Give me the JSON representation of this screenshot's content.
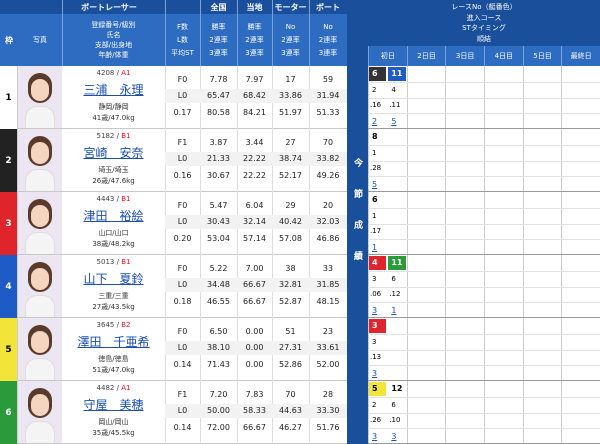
{
  "header": {
    "racer": "ボートレーサー",
    "national": "全国",
    "local": "当地",
    "motor": "モーター",
    "boat": "ボート",
    "waku": "枠",
    "photo": "写真",
    "racer_sub": [
      "登録番号/級別",
      "氏名",
      "支部/出身地",
      "年齢/体重"
    ],
    "fl_sub": [
      "F数",
      "L数",
      "平均ST"
    ],
    "national_sub": [
      "勝率",
      "2連率",
      "3連率"
    ],
    "local_sub": [
      "勝率",
      "2連率",
      "3連率"
    ],
    "motor_sub": [
      "No",
      "2連率",
      "3連率"
    ],
    "boat_sub": [
      "No",
      "2連率",
      "3連率"
    ],
    "current": "今節成績",
    "results_title": [
      "レースNo（艇番色）",
      "進入コース",
      "STタイミング",
      "順結"
    ],
    "days": [
      "初日",
      "2日目",
      "3日目",
      "4日目",
      "5日目",
      "最終日"
    ]
  },
  "separator": " / ",
  "racers": [
    {
      "waku": 1,
      "color": "#ffffff",
      "reg": "4208",
      "class": "A1",
      "name": "三浦　永理",
      "branch": "静岡/静岡",
      "age_weight": "41歳/47.0kg",
      "fl": [
        "F0",
        "L0",
        "0.17"
      ],
      "national": [
        "7.78",
        "65.47",
        "80.58"
      ],
      "local": [
        "7.97",
        "68.42",
        "84.21"
      ],
      "motor": [
        "17",
        "33.86",
        "51.97"
      ],
      "boat": [
        "59",
        "31.94",
        "51.33"
      ],
      "results": [
        {
          "no": 6,
          "color": "#333333",
          "course": 2,
          "st": ".16",
          "rank": 2
        },
        {
          "no": 11,
          "color": "#1e5bc6",
          "course": 4,
          "st": ".11",
          "rank": 5
        }
      ]
    },
    {
      "waku": 2,
      "color": "#222222",
      "reg": "5182",
      "class": "B1",
      "name": "宮崎　安奈",
      "branch": "埼玉/埼玉",
      "age_weight": "26歳/47.6kg",
      "fl": [
        "F1",
        "L0",
        "0.16"
      ],
      "national": [
        "3.87",
        "21.33",
        "30.67"
      ],
      "local": [
        "3.44",
        "22.22",
        "22.22"
      ],
      "motor": [
        "27",
        "38.74",
        "52.17"
      ],
      "boat": [
        "70",
        "33.82",
        "49.26"
      ],
      "results": [
        {
          "no": 8,
          "color": "#ffffff",
          "course": 1,
          "st": ".28",
          "rank": 5
        }
      ]
    },
    {
      "waku": 3,
      "color": "#e0242c",
      "reg": "4443",
      "class": "B1",
      "name": "津田　裕絵",
      "branch": "山口/山口",
      "age_weight": "38歳/48.2kg",
      "fl": [
        "F0",
        "L0",
        "0.20"
      ],
      "national": [
        "5.47",
        "30.43",
        "53.04"
      ],
      "local": [
        "6.04",
        "32.14",
        "57.14"
      ],
      "motor": [
        "29",
        "40.42",
        "57.08"
      ],
      "boat": [
        "20",
        "32.03",
        "46.86"
      ],
      "results": [
        {
          "no": 6,
          "color": "#ffffff",
          "course": 1,
          "st": ".17",
          "rank": 1
        }
      ]
    },
    {
      "waku": 4,
      "color": "#1e5bc6",
      "reg": "5013",
      "class": "B1",
      "name": "山下　夏鈴",
      "branch": "三重/三重",
      "age_weight": "27歳/43.5kg",
      "fl": [
        "F0",
        "L0",
        "0.18"
      ],
      "national": [
        "5.22",
        "34.48",
        "46.55"
      ],
      "local": [
        "7.00",
        "66.67",
        "66.67"
      ],
      "motor": [
        "38",
        "32.81",
        "52.87"
      ],
      "boat": [
        "33",
        "31.85",
        "48.15"
      ],
      "results": [
        {
          "no": 4,
          "color": "#e0242c",
          "course": 3,
          "st": ".06",
          "rank": 3
        },
        {
          "no": 11,
          "color": "#2a9a3a",
          "course": 6,
          "st": ".12",
          "rank": 1
        }
      ]
    },
    {
      "waku": 5,
      "color": "#f3e43a",
      "reg": "3645",
      "class": "B2",
      "name": "澤田　千亜希",
      "branch": "徳島/徳島",
      "age_weight": "51歳/47.0kg",
      "fl": [
        "F0",
        "L0",
        "0.14"
      ],
      "national": [
        "6.50",
        "38.10",
        "71.43"
      ],
      "local": [
        "0.00",
        "0.00",
        "0.00"
      ],
      "motor": [
        "51",
        "27.31",
        "52.86"
      ],
      "boat": [
        "23",
        "33.61",
        "52.00"
      ],
      "results": [
        {
          "no": 3,
          "color": "#e0242c",
          "course": 3,
          "st": ".13",
          "rank": 3
        }
      ]
    },
    {
      "waku": 6,
      "color": "#2a9a3a",
      "reg": "4482",
      "class": "A1",
      "name": "守屋　美穂",
      "branch": "岡山/岡山",
      "age_weight": "35歳/45.5kg",
      "fl": [
        "F1",
        "L0",
        "0.14"
      ],
      "national": [
        "7.20",
        "50.00",
        "72.00"
      ],
      "local": [
        "7.83",
        "58.33",
        "66.67"
      ],
      "motor": [
        "70",
        "44.63",
        "46.27"
      ],
      "boat": [
        "28",
        "33.30",
        "51.76"
      ],
      "results": [
        {
          "no": 5,
          "color": "#f3e43a",
          "course": 2,
          "st": ".26",
          "rank": 3
        },
        {
          "no": 12,
          "color": "#ffffff",
          "course": 6,
          "st": ".10",
          "rank": 3
        }
      ]
    }
  ]
}
